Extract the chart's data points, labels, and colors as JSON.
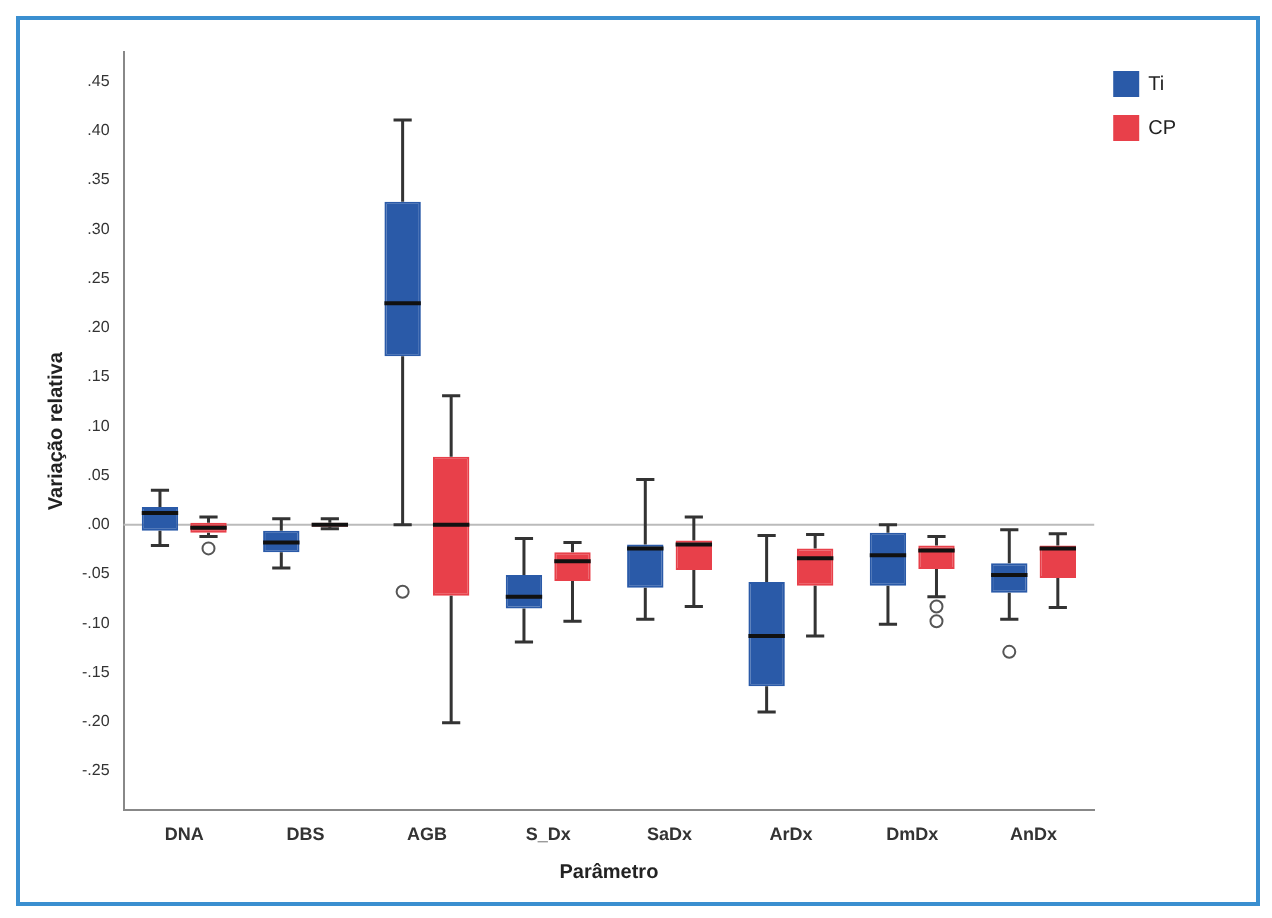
{
  "chart_data": {
    "type": "box",
    "xlabel": "Parâmetro",
    "ylabel": "Variação relativa",
    "categories": [
      "DNA",
      "DBS",
      "AGB",
      "S_Dx",
      "SaDx",
      "ArDx",
      "DmDx",
      "AnDx"
    ],
    "series": [
      {
        "name": "Ti",
        "color": "#2a5aa8",
        "boxes": [
          {
            "low": -0.021,
            "q1": -0.006,
            "median": 0.012,
            "q3": 0.018,
            "high": 0.035
          },
          {
            "low": -0.044,
            "q1": -0.028,
            "median": -0.018,
            "q3": -0.006,
            "high": 0.006
          },
          {
            "low": 0.0,
            "q1": 0.171,
            "median": 0.225,
            "q3": 0.328,
            "high": 0.411,
            "outliers": [
              -0.068
            ]
          },
          {
            "low": -0.119,
            "q1": -0.085,
            "median": -0.073,
            "q3": -0.051,
            "high": -0.014
          },
          {
            "low": -0.096,
            "q1": -0.064,
            "median": -0.024,
            "q3": -0.02,
            "high": 0.046
          },
          {
            "low": -0.19,
            "q1": -0.164,
            "median": -0.113,
            "q3": -0.058,
            "high": -0.011
          },
          {
            "low": -0.101,
            "q1": -0.062,
            "median": -0.031,
            "q3": -0.008,
            "high": 0.0
          },
          {
            "low": -0.096,
            "q1": -0.069,
            "median": -0.051,
            "q3": -0.039,
            "high": -0.005,
            "outliers": [
              -0.129
            ]
          }
        ]
      },
      {
        "name": "CP",
        "color": "#e8404a",
        "boxes": [
          {
            "low": -0.012,
            "q1": -0.008,
            "median": -0.003,
            "q3": 0.002,
            "high": 0.008,
            "outliers": [
              -0.024
            ]
          },
          {
            "low": -0.004,
            "q1": -0.002,
            "median": 0.0,
            "q3": 0.002,
            "high": 0.006
          },
          {
            "low": -0.201,
            "q1": -0.072,
            "median": 0.0,
            "q3": 0.069,
            "high": 0.131
          },
          {
            "low": -0.098,
            "q1": -0.057,
            "median": -0.037,
            "q3": -0.028,
            "high": -0.018
          },
          {
            "low": -0.083,
            "q1": -0.046,
            "median": -0.02,
            "q3": -0.016,
            "high": 0.008
          },
          {
            "low": -0.113,
            "q1": -0.062,
            "median": -0.034,
            "q3": -0.024,
            "high": -0.01
          },
          {
            "low": -0.073,
            "q1": -0.045,
            "median": -0.026,
            "q3": -0.021,
            "high": -0.012,
            "outliers": [
              -0.083,
              -0.098
            ]
          },
          {
            "low": -0.084,
            "q1": -0.054,
            "median": -0.024,
            "q3": -0.021,
            "high": -0.009
          }
        ]
      }
    ],
    "ylim": [
      -0.29,
      0.48
    ],
    "yticks": [
      {
        "value": 0.45,
        "label": ".45"
      },
      {
        "value": 0.4,
        "label": ".40"
      },
      {
        "value": 0.35,
        "label": ".35"
      },
      {
        "value": 0.3,
        "label": ".30"
      },
      {
        "value": 0.25,
        "label": ".25"
      },
      {
        "value": 0.2,
        "label": ".20"
      },
      {
        "value": 0.15,
        "label": ".15"
      },
      {
        "value": 0.1,
        "label": ".10"
      },
      {
        "value": 0.05,
        "label": ".05"
      },
      {
        "value": 0.0,
        "label": ".00"
      },
      {
        "value": -0.05,
        "label": "-.05"
      },
      {
        "value": -0.1,
        "label": "-.10"
      },
      {
        "value": -0.15,
        "label": "-.15"
      },
      {
        "value": -0.2,
        "label": "-.20"
      },
      {
        "value": -0.25,
        "label": "-.25"
      }
    ],
    "ref_lines": [
      {
        "axis": "y",
        "value": 0,
        "color": "#bbbbbb"
      }
    ],
    "grid": false,
    "legend": "top right"
  }
}
